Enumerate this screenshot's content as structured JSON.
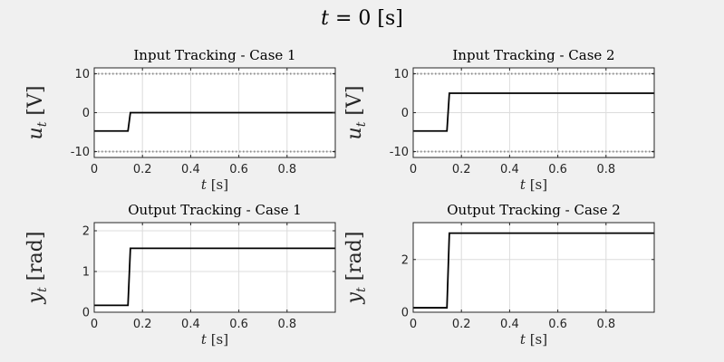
{
  "figure": {
    "title_var": "t",
    "title_rest": " = 0 [s]"
  },
  "chart_data": [
    {
      "type": "line",
      "title": "Input Tracking - Case 1",
      "xlabel_var": "t",
      "xlabel_unit": " [s]",
      "ylabel_var": "u",
      "ylabel_sub": "t",
      "ylabel_unit": " [V]",
      "xlim": [
        0,
        1
      ],
      "ylim": [
        -11.5,
        11.5
      ],
      "xticks": [
        0,
        0.2,
        0.4,
        0.6,
        0.8
      ],
      "xtick_labels": [
        "0",
        "0.2",
        "0.4",
        "0.6",
        "0.8"
      ],
      "yticks": [
        -10,
        0,
        10
      ],
      "ytick_labels": [
        "-10",
        "0",
        "10"
      ],
      "grid": true,
      "limits": [
        10,
        -10
      ],
      "series": [
        {
          "x": [
            0,
            0.14,
            0.15,
            1.0
          ],
          "y": [
            -4.7,
            -4.7,
            0,
            0
          ],
          "color": "#000000"
        }
      ]
    },
    {
      "type": "line",
      "title": "Input Tracking - Case 2",
      "xlabel_var": "t",
      "xlabel_unit": " [s]",
      "ylabel_var": "u",
      "ylabel_sub": "t",
      "ylabel_unit": " [V]",
      "xlim": [
        0,
        1
      ],
      "ylim": [
        -11.5,
        11.5
      ],
      "xticks": [
        0,
        0.2,
        0.4,
        0.6,
        0.8
      ],
      "xtick_labels": [
        "0",
        "0.2",
        "0.4",
        "0.6",
        "0.8"
      ],
      "yticks": [
        -10,
        0,
        10
      ],
      "ytick_labels": [
        "-10",
        "0",
        "10"
      ],
      "grid": true,
      "limits": [
        10,
        -10
      ],
      "series": [
        {
          "x": [
            0,
            0.14,
            0.15,
            1.0
          ],
          "y": [
            -4.7,
            -4.7,
            5,
            5
          ],
          "color": "#000000"
        }
      ]
    },
    {
      "type": "line",
      "title": "Output Tracking - Case 1",
      "xlabel_var": "t",
      "xlabel_unit": " [s]",
      "ylabel_var": "y",
      "ylabel_sub": "t",
      "ylabel_unit": " [rad]",
      "xlim": [
        0,
        1
      ],
      "ylim": [
        0,
        2.2
      ],
      "xticks": [
        0,
        0.2,
        0.4,
        0.6,
        0.8
      ],
      "xtick_labels": [
        "0",
        "0.2",
        "0.4",
        "0.6",
        "0.8"
      ],
      "yticks": [
        0,
        1,
        2
      ],
      "ytick_labels": [
        "0",
        "1",
        "2"
      ],
      "grid": true,
      "limits": [],
      "series": [
        {
          "x": [
            0,
            0.14,
            0.15,
            1.0
          ],
          "y": [
            0.17,
            0.17,
            1.57,
            1.57
          ],
          "color": "#000000"
        }
      ]
    },
    {
      "type": "line",
      "title": "Output Tracking - Case 2",
      "xlabel_var": "t",
      "xlabel_unit": " [s]",
      "ylabel_var": "y",
      "ylabel_sub": "t",
      "ylabel_unit": " [rad]",
      "xlim": [
        0,
        1
      ],
      "ylim": [
        0,
        3.4
      ],
      "xticks": [
        0,
        0.2,
        0.4,
        0.6,
        0.8
      ],
      "xtick_labels": [
        "0",
        "0.2",
        "0.4",
        "0.6",
        "0.8"
      ],
      "yticks": [
        0,
        2
      ],
      "ytick_labels": [
        "0",
        "2"
      ],
      "grid": true,
      "limits": [],
      "series": [
        {
          "x": [
            0,
            0.14,
            0.15,
            1.0
          ],
          "y": [
            0.17,
            0.17,
            3.0,
            3.0
          ],
          "color": "#000000"
        }
      ]
    }
  ]
}
